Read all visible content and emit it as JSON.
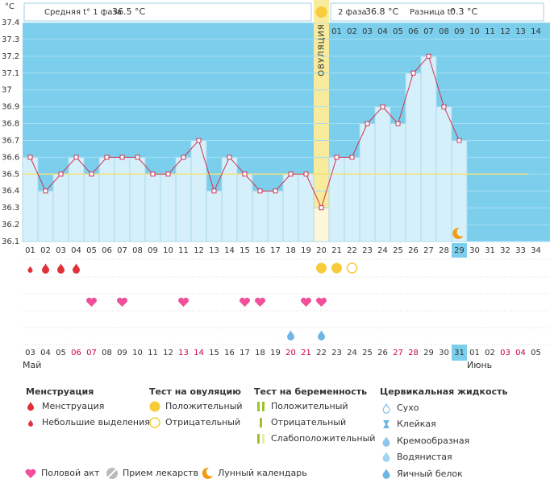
{
  "chart_data": {
    "type": "line",
    "y_unit": "°C",
    "categories": [
      "01",
      "02",
      "03",
      "04",
      "05",
      "06",
      "07",
      "08",
      "09",
      "10",
      "11",
      "12",
      "13",
      "14",
      "15",
      "16",
      "17",
      "18",
      "19",
      "20",
      "21",
      "22",
      "23",
      "24",
      "25",
      "26",
      "27",
      "28",
      "29",
      "30",
      "31",
      "32",
      "33",
      "34"
    ],
    "values": [
      36.6,
      36.4,
      36.5,
      36.6,
      36.5,
      36.6,
      36.6,
      36.6,
      36.5,
      36.5,
      36.6,
      36.7,
      36.4,
      36.6,
      36.5,
      36.4,
      36.4,
      36.5,
      36.5,
      36.3,
      36.6,
      36.6,
      36.8,
      36.9,
      36.8,
      37.1,
      37.2,
      36.9,
      36.7,
      null,
      null,
      null,
      null,
      null
    ],
    "ylim": [
      36.1,
      37.4
    ],
    "yticks": [
      36.1,
      36.2,
      36.3,
      36.4,
      36.5,
      36.6,
      36.7,
      36.8,
      36.9,
      37,
      37.1,
      37.2,
      37.3,
      37.4
    ],
    "grid": true,
    "color": "#cc3355",
    "bar_color": "#d6f0fb",
    "background": "#7ccfec",
    "cover_line": 36.5,
    "cover_color": "#f3e27a",
    "phase1": {
      "label": "Средняя t° 1 фаза",
      "value": "36.5 °C"
    },
    "phase2": {
      "label": "2 фаза",
      "value": "36.8 °C"
    },
    "difference": {
      "label": "Разница t°",
      "value": "0.3 °C"
    },
    "ovulation": {
      "label": "ОВУЛЯЦИЯ",
      "day_index": 19,
      "color": "#f8eb9c"
    },
    "post_ovulation_days": [
      "01",
      "02",
      "03",
      "04",
      "05",
      "06",
      "07",
      "08",
      "09",
      "10",
      "11",
      "12",
      "13",
      "14"
    ],
    "dates": [
      "03",
      "04",
      "05",
      "06",
      "07",
      "08",
      "09",
      "10",
      "11",
      "12",
      "13",
      "14",
      "15",
      "16",
      "17",
      "18",
      "19",
      "20",
      "21",
      "22",
      "23",
      "24",
      "25",
      "26",
      "27",
      "28",
      "29",
      "30",
      "31",
      "01",
      "02",
      "03",
      "04",
      "05"
    ],
    "weekend_indices": [
      3,
      4,
      10,
      11,
      17,
      18,
      24,
      25,
      31,
      32
    ],
    "weekend_color": "#cc0044",
    "months": [
      {
        "label": "Май",
        "index": 0
      },
      {
        "label": "Июнь",
        "index": 29
      }
    ],
    "today_index": 28,
    "markers": {
      "menstruation_light": [
        0
      ],
      "menstruation": [
        1,
        2,
        3
      ],
      "ovulation_positive": [
        19,
        20
      ],
      "ovulation_negative": [
        21
      ],
      "intercourse": [
        4,
        6,
        10,
        14,
        15,
        18,
        19
      ],
      "egg_white": [
        17,
        19
      ]
    }
  },
  "legend": {
    "menstruation": {
      "title": "Менструация",
      "items": [
        "Менструация",
        "Небольшие выделения"
      ]
    },
    "ovulation_test": {
      "title": "Тест на овуляцию",
      "items": [
        "Положительный",
        "Отрицательный"
      ]
    },
    "pregnancy_test": {
      "title": "Тест на беременность",
      "items": [
        "Положительный",
        "Отрицательный",
        "Слабоположительный"
      ]
    },
    "cervical_fluid": {
      "title": "Цервикальная жидкость",
      "items": [
        "Сухо",
        "Клейкая",
        "Кремообразная",
        "Водянистая",
        "Яичный белок"
      ]
    },
    "other": [
      "Половой акт",
      "Прием лекарств",
      "Лунный календарь"
    ]
  }
}
